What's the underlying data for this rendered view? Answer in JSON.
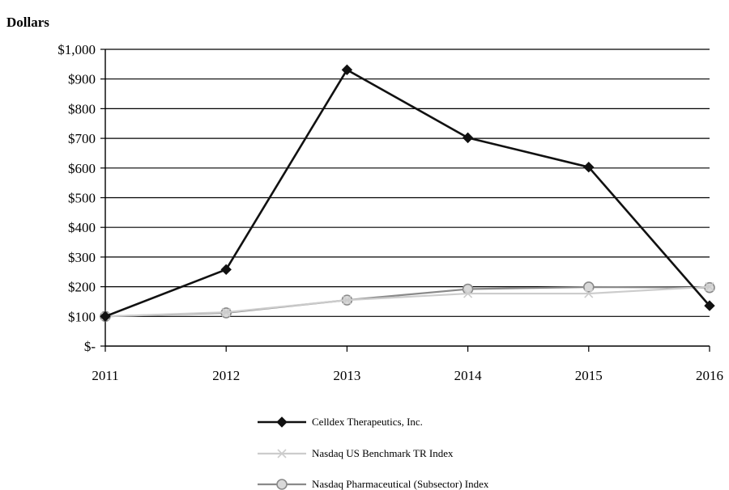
{
  "chart_data": {
    "type": "line",
    "ylabel": "Dollars",
    "categories": [
      "2011",
      "2012",
      "2013",
      "2014",
      "2015",
      "2016"
    ],
    "y_ticks": [
      {
        "value": 0,
        "label": "$-"
      },
      {
        "value": 100,
        "label": "$100"
      },
      {
        "value": 200,
        "label": "$200"
      },
      {
        "value": 300,
        "label": "$300"
      },
      {
        "value": 400,
        "label": "$400"
      },
      {
        "value": 500,
        "label": "$500"
      },
      {
        "value": 600,
        "label": "$600"
      },
      {
        "value": 700,
        "label": "$700"
      },
      {
        "value": 800,
        "label": "$800"
      },
      {
        "value": 900,
        "label": "$900"
      },
      {
        "value": 1000,
        "label": "$1,000"
      }
    ],
    "ylim": [
      0,
      1000
    ],
    "grid": true,
    "legend_position": "bottom",
    "series": [
      {
        "name": "Celldex Therapeutics, Inc.",
        "values": [
          100,
          258,
          931,
          702,
          603,
          136
        ],
        "color": "#111111",
        "marker": "diamond",
        "icon": "diamond-marker-icon"
      },
      {
        "name": "Nasdaq US Benchmark TR Index",
        "values": [
          100,
          114,
          155,
          177,
          177,
          200
        ],
        "color": "#cccccc",
        "marker": "x",
        "icon": "x-marker-icon"
      },
      {
        "name": "Nasdaq Pharmaceutical (Subsector) Index",
        "values": [
          100,
          112,
          155,
          192,
          199,
          197
        ],
        "color": "#8a8a8a",
        "marker": "circle",
        "icon": "circle-marker-icon"
      }
    ]
  }
}
